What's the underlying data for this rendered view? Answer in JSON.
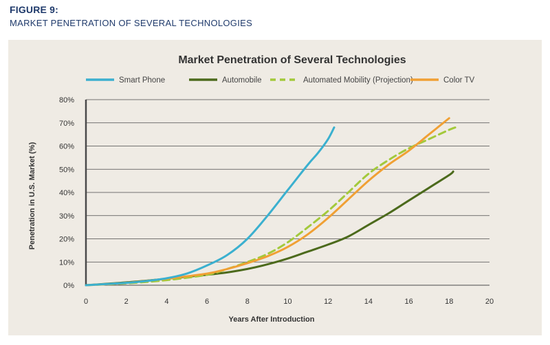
{
  "header": {
    "figure_label": "FIGURE 9:",
    "subtitle": "MARKET PENETRATION OF SEVERAL TECHNOLOGIES"
  },
  "chart_data": {
    "type": "line",
    "title": "Market Penetration of Several Technologies",
    "xlabel": "Years After Introduction",
    "ylabel": "Penetration in U.S. Market (%)",
    "xlim": [
      0,
      20
    ],
    "ylim": [
      0,
      80
    ],
    "xticks": [
      "0",
      "2",
      "4",
      "6",
      "8",
      "10",
      "12",
      "14",
      "16",
      "18",
      "20"
    ],
    "yticks": [
      "0%",
      "10%",
      "20%",
      "30%",
      "40%",
      "50%",
      "60%",
      "70%",
      "80%"
    ],
    "grid": "horizontal",
    "legend": "top",
    "series": [
      {
        "name": "Smart Phone",
        "color": "#3bb0cf",
        "dashed": false,
        "points": [
          [
            0,
            0
          ],
          [
            2,
            1
          ],
          [
            3,
            1.8
          ],
          [
            4,
            3
          ],
          [
            5,
            5
          ],
          [
            6,
            8.5
          ],
          [
            7,
            13
          ],
          [
            8,
            20
          ],
          [
            9,
            30
          ],
          [
            10,
            41
          ],
          [
            11,
            52
          ],
          [
            11.5,
            57
          ],
          [
            12,
            63
          ],
          [
            12.3,
            68
          ]
        ]
      },
      {
        "name": "Automobile",
        "color": "#4c6a1c",
        "dashed": false,
        "points": [
          [
            0,
            0
          ],
          [
            2,
            1.2
          ],
          [
            4,
            2.8
          ],
          [
            6,
            4.5
          ],
          [
            7,
            5.5
          ],
          [
            8,
            7
          ],
          [
            9,
            9
          ],
          [
            10,
            11.5
          ],
          [
            11,
            14.5
          ],
          [
            12,
            17.5
          ],
          [
            13,
            21
          ],
          [
            14,
            26
          ],
          [
            15,
            31
          ],
          [
            16,
            36.5
          ],
          [
            17,
            42
          ],
          [
            18,
            47.5
          ],
          [
            18.2,
            49
          ]
        ]
      },
      {
        "name": "Automated Mobility (Projection)",
        "color": "#a3c93b",
        "dashed": true,
        "points": [
          [
            0,
            0
          ],
          [
            2,
            0.8
          ],
          [
            4,
            2.2
          ],
          [
            6,
            4.5
          ],
          [
            7,
            7
          ],
          [
            8,
            10
          ],
          [
            9,
            13.5
          ],
          [
            10,
            18.5
          ],
          [
            11,
            25
          ],
          [
            12,
            32
          ],
          [
            13,
            40
          ],
          [
            14,
            48
          ],
          [
            15,
            54
          ],
          [
            16,
            59
          ],
          [
            17,
            63
          ],
          [
            18,
            67
          ],
          [
            18.3,
            68
          ]
        ]
      },
      {
        "name": "Color TV",
        "color": "#f0a034",
        "dashed": false,
        "points": [
          [
            0,
            0
          ],
          [
            2,
            1
          ],
          [
            4,
            2.8
          ],
          [
            6,
            5
          ],
          [
            7,
            7
          ],
          [
            8,
            9.5
          ],
          [
            9,
            12.5
          ],
          [
            10,
            16.5
          ],
          [
            11,
            22
          ],
          [
            12,
            29
          ],
          [
            13,
            37
          ],
          [
            14,
            45
          ],
          [
            15,
            52
          ],
          [
            16,
            58
          ],
          [
            17,
            65
          ],
          [
            18,
            72
          ]
        ]
      }
    ]
  }
}
